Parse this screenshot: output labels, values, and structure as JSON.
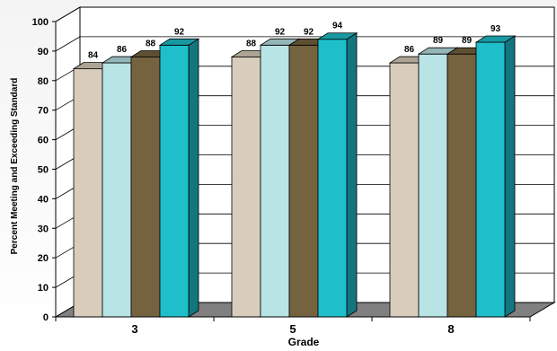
{
  "chart_data": {
    "type": "bar",
    "title": "",
    "xlabel": "Grade",
    "ylabel": "Percent Meeting and Exceeding Standard",
    "ylim": [
      0,
      100
    ],
    "yticks": [
      0,
      10,
      20,
      30,
      40,
      50,
      60,
      70,
      80,
      90,
      100
    ],
    "categories": [
      "3",
      "5",
      "8"
    ],
    "grid": true,
    "series": [
      {
        "values": [
          84,
          88,
          86
        ],
        "color": "#d8cdbc"
      },
      {
        "values": [
          86,
          92,
          89
        ],
        "color": "#b9e4e6"
      },
      {
        "values": [
          88,
          92,
          89
        ],
        "color": "#756340"
      },
      {
        "values": [
          92,
          94,
          93
        ],
        "color": "#1ebfcb"
      }
    ]
  }
}
